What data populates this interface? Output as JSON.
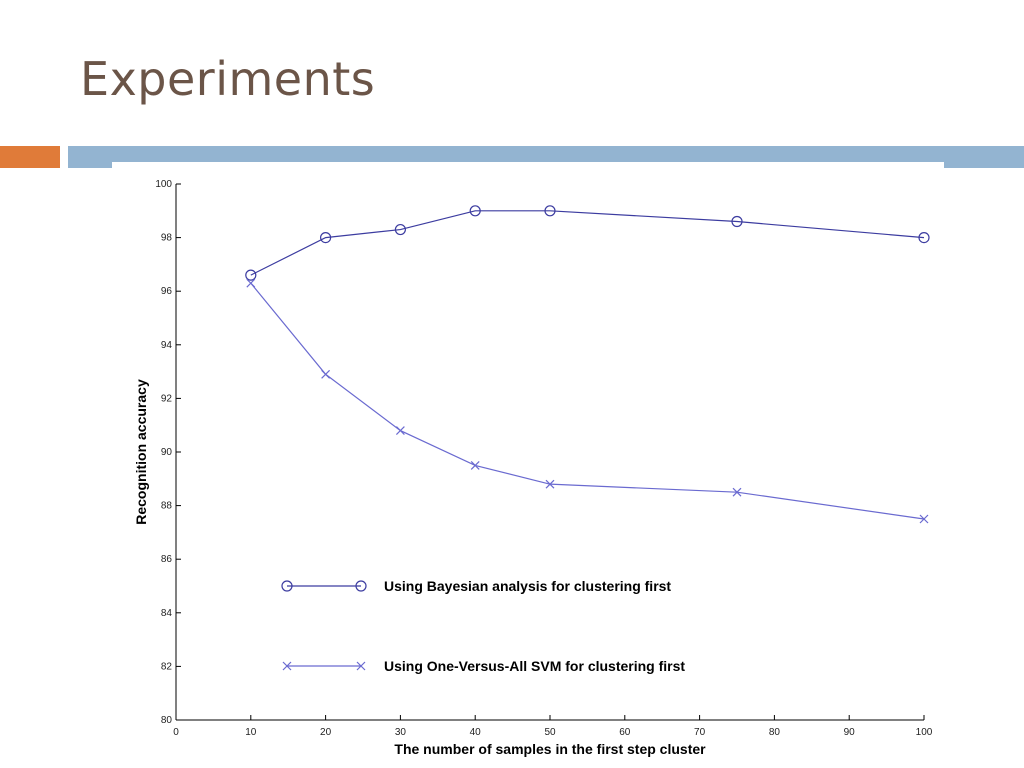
{
  "slide": {
    "title": "Experiments",
    "accent_color_left": "#e07b39",
    "accent_color_right": "#93b4d1"
  },
  "chart_data": {
    "type": "line",
    "title": "",
    "xlabel": "The number of samples in the first step cluster",
    "ylabel": "Recognition accuracy",
    "xlim": [
      0,
      100
    ],
    "ylim": [
      80,
      100
    ],
    "x_ticks": [
      0,
      10,
      20,
      30,
      40,
      50,
      60,
      70,
      80,
      90,
      100
    ],
    "y_ticks": [
      80,
      82,
      84,
      86,
      88,
      90,
      92,
      94,
      96,
      98,
      100
    ],
    "x": [
      10,
      20,
      30,
      40,
      50,
      75,
      100
    ],
    "series": [
      {
        "name": "Using Bayesian analysis for clustering first",
        "marker": "circle",
        "color": "#3c3ca0",
        "values": [
          96.6,
          98.0,
          98.3,
          99.0,
          99.0,
          98.6,
          98.0
        ]
      },
      {
        "name": "Using One-Versus-All SVM for clustering first",
        "marker": "x",
        "color": "#6a6ad0",
        "values": [
          96.3,
          92.9,
          90.8,
          89.5,
          88.8,
          88.5,
          87.5
        ]
      }
    ],
    "grid": false,
    "legend_position": "bottom-left"
  }
}
